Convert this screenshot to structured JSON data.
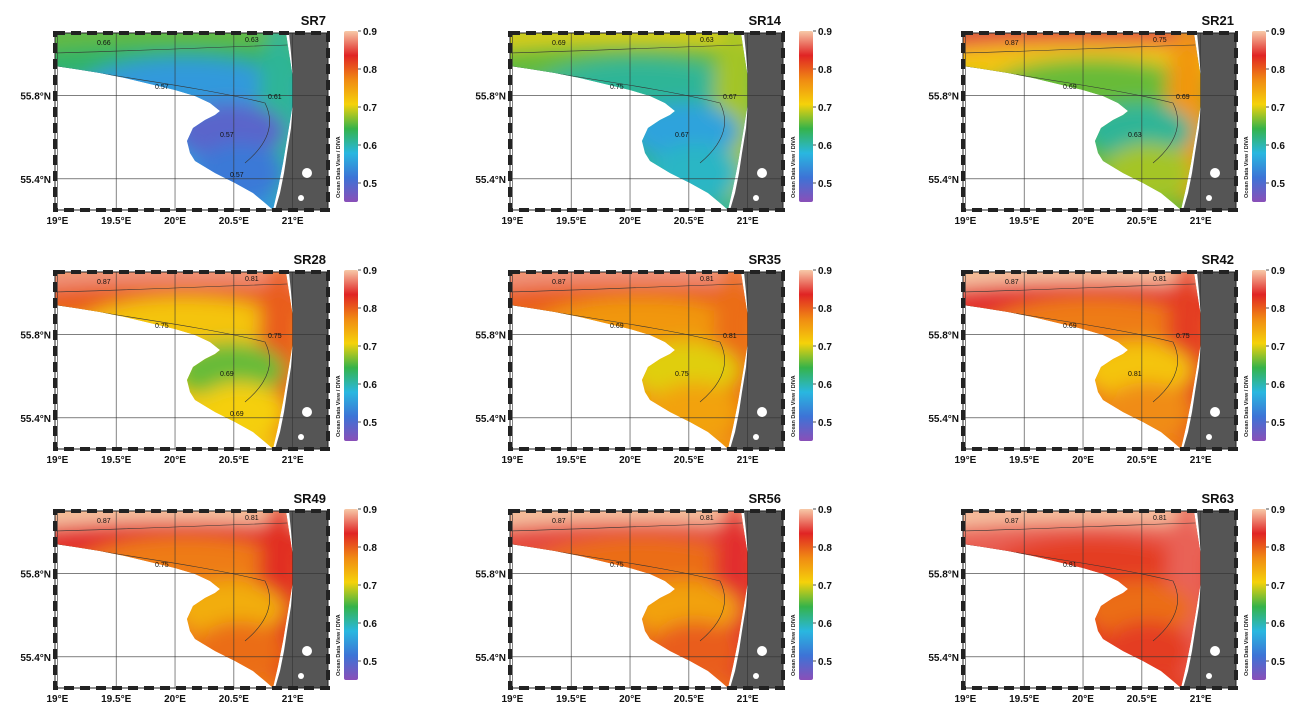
{
  "chart_data": {
    "type": "heatmap",
    "layout": "3x3 small multiples",
    "colorbar": {
      "min": 0.45,
      "max": 0.9,
      "ticks": [
        0.5,
        0.6,
        0.7,
        0.8,
        0.9
      ],
      "colormap": [
        "#8a4fb8",
        "#3d73d6",
        "#29b7e0",
        "#35b34a",
        "#f5d20a",
        "#f08a13",
        "#e02424",
        "#f7c9a8"
      ]
    },
    "colorbar_credit": "Ocean Data View / DIVA",
    "x_ticks": [
      "19°E",
      "19.5°E",
      "20°E",
      "20.5°E",
      "21°E"
    ],
    "y_ticks": [
      "55.8°N",
      "55.4°N"
    ],
    "xlim": [
      18.98,
      21.3
    ],
    "ylim": [
      55.25,
      56.1
    ],
    "panels": [
      {
        "title": "SR7",
        "values": {
          "offshore_north": 0.66,
          "north_band": 0.63,
          "central": 0.55,
          "bay_core": 0.49,
          "south": 0.52,
          "coast": 0.61
        },
        "contour_labels": [
          "0.66",
          "0.63",
          "0.57",
          "0.61",
          "0.57",
          "0.57"
        ]
      },
      {
        "title": "SR14",
        "values": {
          "offshore_north": 0.7,
          "north_band": 0.66,
          "central": 0.61,
          "bay_core": 0.56,
          "south": 0.59,
          "coast": 0.68
        },
        "contour_labels": [
          "0.69",
          "0.63",
          "0.75",
          "0.67",
          "0.67"
        ]
      },
      {
        "title": "SR21",
        "values": {
          "offshore_north": 0.85,
          "north_band": 0.72,
          "central": 0.66,
          "bay_core": 0.61,
          "south": 0.68,
          "coast": 0.76
        },
        "contour_labels": [
          "0.87",
          "0.75",
          "0.69",
          "0.69",
          "0.63"
        ]
      },
      {
        "title": "SR28",
        "values": {
          "offshore_north": 0.88,
          "north_band": 0.8,
          "central": 0.72,
          "bay_core": 0.66,
          "south": 0.71,
          "coast": 0.8
        },
        "contour_labels": [
          "0.87",
          "0.81",
          "0.75",
          "0.75",
          "0.69",
          "0.69"
        ]
      },
      {
        "title": "SR35",
        "values": {
          "offshore_north": 0.88,
          "north_band": 0.8,
          "central": 0.76,
          "bay_core": 0.7,
          "south": 0.75,
          "coast": 0.79
        },
        "contour_labels": [
          "0.87",
          "0.81",
          "0.69",
          "0.81",
          "0.75"
        ]
      },
      {
        "title": "SR42",
        "values": {
          "offshore_north": 0.9,
          "north_band": 0.84,
          "central": 0.78,
          "bay_core": 0.72,
          "south": 0.77,
          "coast": 0.82
        },
        "contour_labels": [
          "0.87",
          "0.81",
          "0.69",
          "0.75",
          "0.81"
        ]
      },
      {
        "title": "SR49",
        "values": {
          "offshore_north": 0.9,
          "north_band": 0.84,
          "central": 0.78,
          "bay_core": 0.74,
          "south": 0.79,
          "coast": 0.83
        },
        "contour_labels": [
          "0.87",
          "0.81",
          "0.75"
        ]
      },
      {
        "title": "SR56",
        "values": {
          "offshore_north": 0.9,
          "north_band": 0.85,
          "central": 0.79,
          "bay_core": 0.75,
          "south": 0.8,
          "coast": 0.84
        },
        "contour_labels": [
          "0.87",
          "0.81",
          "0.75"
        ]
      },
      {
        "title": "SR63",
        "values": {
          "offshore_north": 0.9,
          "north_band": 0.86,
          "central": 0.82,
          "bay_core": 0.79,
          "south": 0.82,
          "coast": 0.86
        },
        "contour_labels": [
          "0.87",
          "0.81",
          "0.81"
        ]
      }
    ]
  }
}
